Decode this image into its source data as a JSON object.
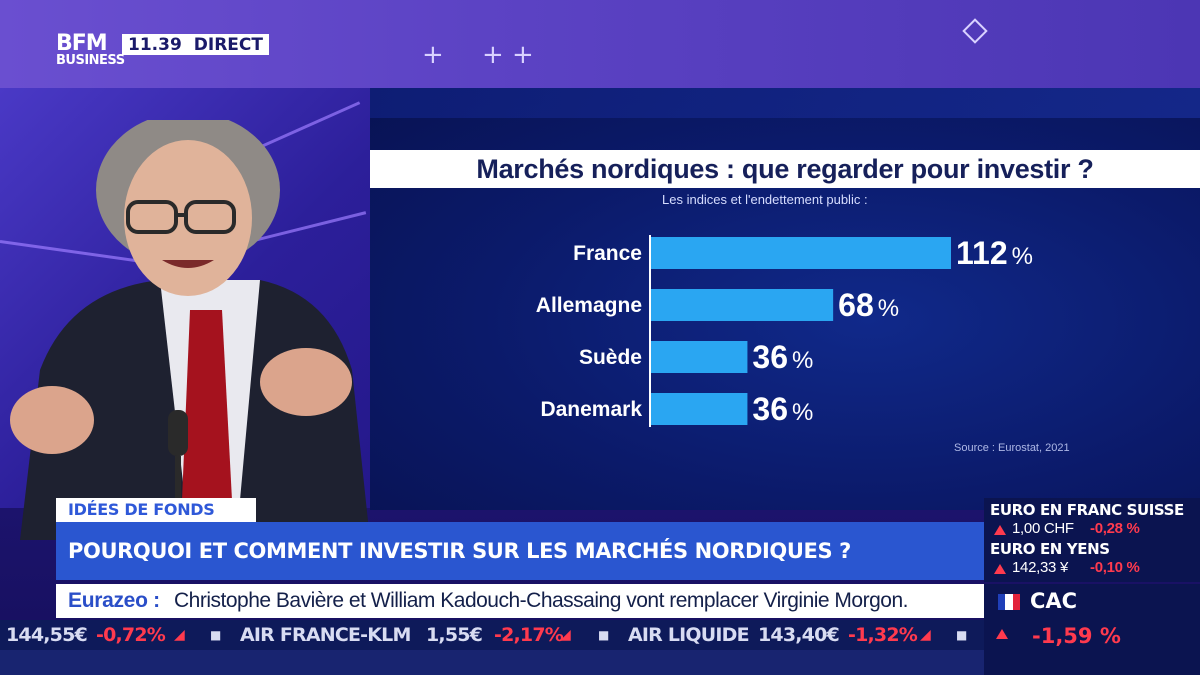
{
  "header": {
    "logo_line1": "BFM",
    "logo_line2": "BUSINESS",
    "time": "11.39",
    "live_label": "DIRECT"
  },
  "chart_data": {
    "type": "bar",
    "orientation": "horizontal",
    "title": "Marchés nordiques : que regarder pour investir ?",
    "subtitle": "Les indices et l'endettement public :",
    "categories": [
      "France",
      "Allemagne",
      "Suède",
      "Danemark"
    ],
    "values": [
      112,
      68,
      36,
      36
    ],
    "value_labels": [
      "112",
      "68",
      "36",
      "36"
    ],
    "unit": "%",
    "source": "Source : Eurostat, 2021",
    "bar_color": "#2aa6f2",
    "label_color": "#ffffff",
    "grid": false
  },
  "lower_third": {
    "segment": "IDÉES DE FONDS",
    "headline": "POURQUOI ET COMMENT INVESTIR SUR LES MARCHÉS NORDIQUES ?",
    "news_source": "Eurazeo :",
    "news_text": "Christophe Bavière et William Kadouch-Chassaing vont remplacer Virginie Morgon."
  },
  "ticker": [
    {
      "text": "144,55€",
      "color": "white"
    },
    {
      "text": "-0,72%",
      "color": "red"
    },
    {
      "text": "AIR FRANCE-KLM",
      "color": "white"
    },
    {
      "text": "1,55€",
      "color": "white"
    },
    {
      "text": "-2,17%",
      "color": "red"
    },
    {
      "text": "AIR LIQUIDE",
      "color": "white"
    },
    {
      "text": "143,40€",
      "color": "white"
    },
    {
      "text": "-1,32%",
      "color": "red"
    }
  ],
  "fx": [
    {
      "label": "EURO EN FRANC SUISSE",
      "value": "1,00 CHF",
      "change": "-0,28 %"
    },
    {
      "label": "EURO EN YENS",
      "value": "142,33 ¥",
      "change": "-0,10 %"
    }
  ],
  "index": {
    "name": "CAC",
    "change": "-1,59 %",
    "flag_colors": [
      "#1f3fb8",
      "#ffffff",
      "#e2223a"
    ]
  },
  "colors": {
    "accent_blue": "#2a56d0",
    "down_red": "#ff3a4e",
    "navy": "#0b1450"
  }
}
